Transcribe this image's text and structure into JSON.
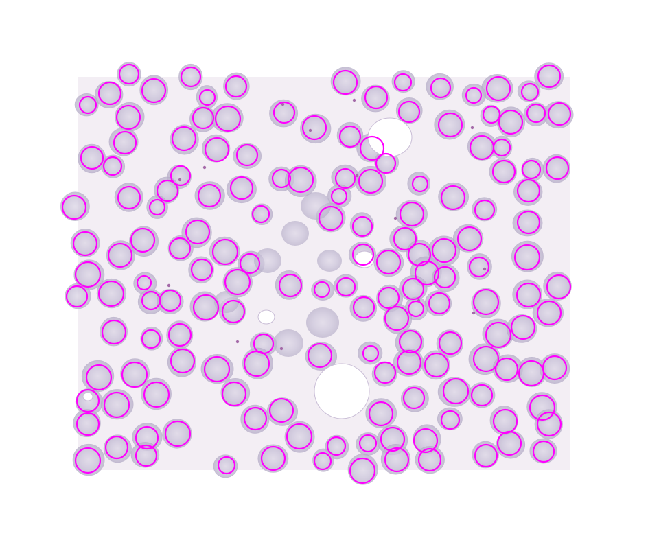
{
  "image": {
    "kind": "blood-smear-micrograph",
    "background_color": "#f3eef4",
    "cell_color": "#c9c2d8",
    "cell_edge_color": "#b4abc6",
    "artifact_color": "#ffffff",
    "stain_dot_color": "#a46aa8"
  },
  "annotations": {
    "marker_shape": "circle",
    "marker_color": "#ff00ff",
    "count": 192
  }
}
